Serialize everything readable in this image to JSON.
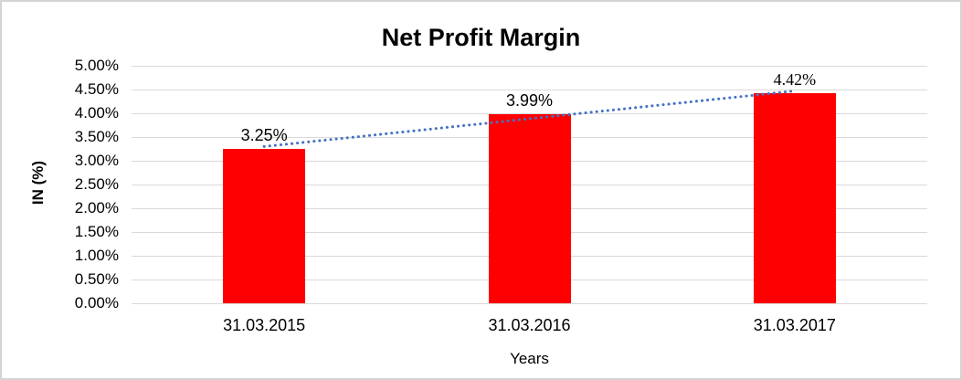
{
  "chart_data": {
    "type": "bar",
    "title": "Net Profit Margin",
    "xlabel": "Years",
    "ylabel": "IN (%)",
    "categories": [
      "31.03.2015",
      "31.03.2016",
      "31.03.2017"
    ],
    "values": [
      3.25,
      3.99,
      4.42
    ],
    "data_labels": [
      "3.25%",
      "3.99%",
      "4.42%"
    ],
    "data_label_styles": [
      "sans",
      "sans",
      "serif"
    ],
    "ylim": [
      0,
      5
    ],
    "ytick_step": 0.5,
    "ytick_labels": [
      "5.00%",
      "4.50%",
      "4.00%",
      "3.50%",
      "3.00%",
      "2.50%",
      "2.00%",
      "1.50%",
      "1.00%",
      "0.50%",
      "0.00%"
    ],
    "grid": true,
    "legend": "none",
    "bar_color": "#FF0000",
    "gridline_color": "#d9d9d9",
    "trendline": {
      "type": "linear",
      "style": "dotted",
      "color": "#4472C4",
      "fit_values": [
        3.3,
        3.89,
        4.47
      ]
    }
  }
}
